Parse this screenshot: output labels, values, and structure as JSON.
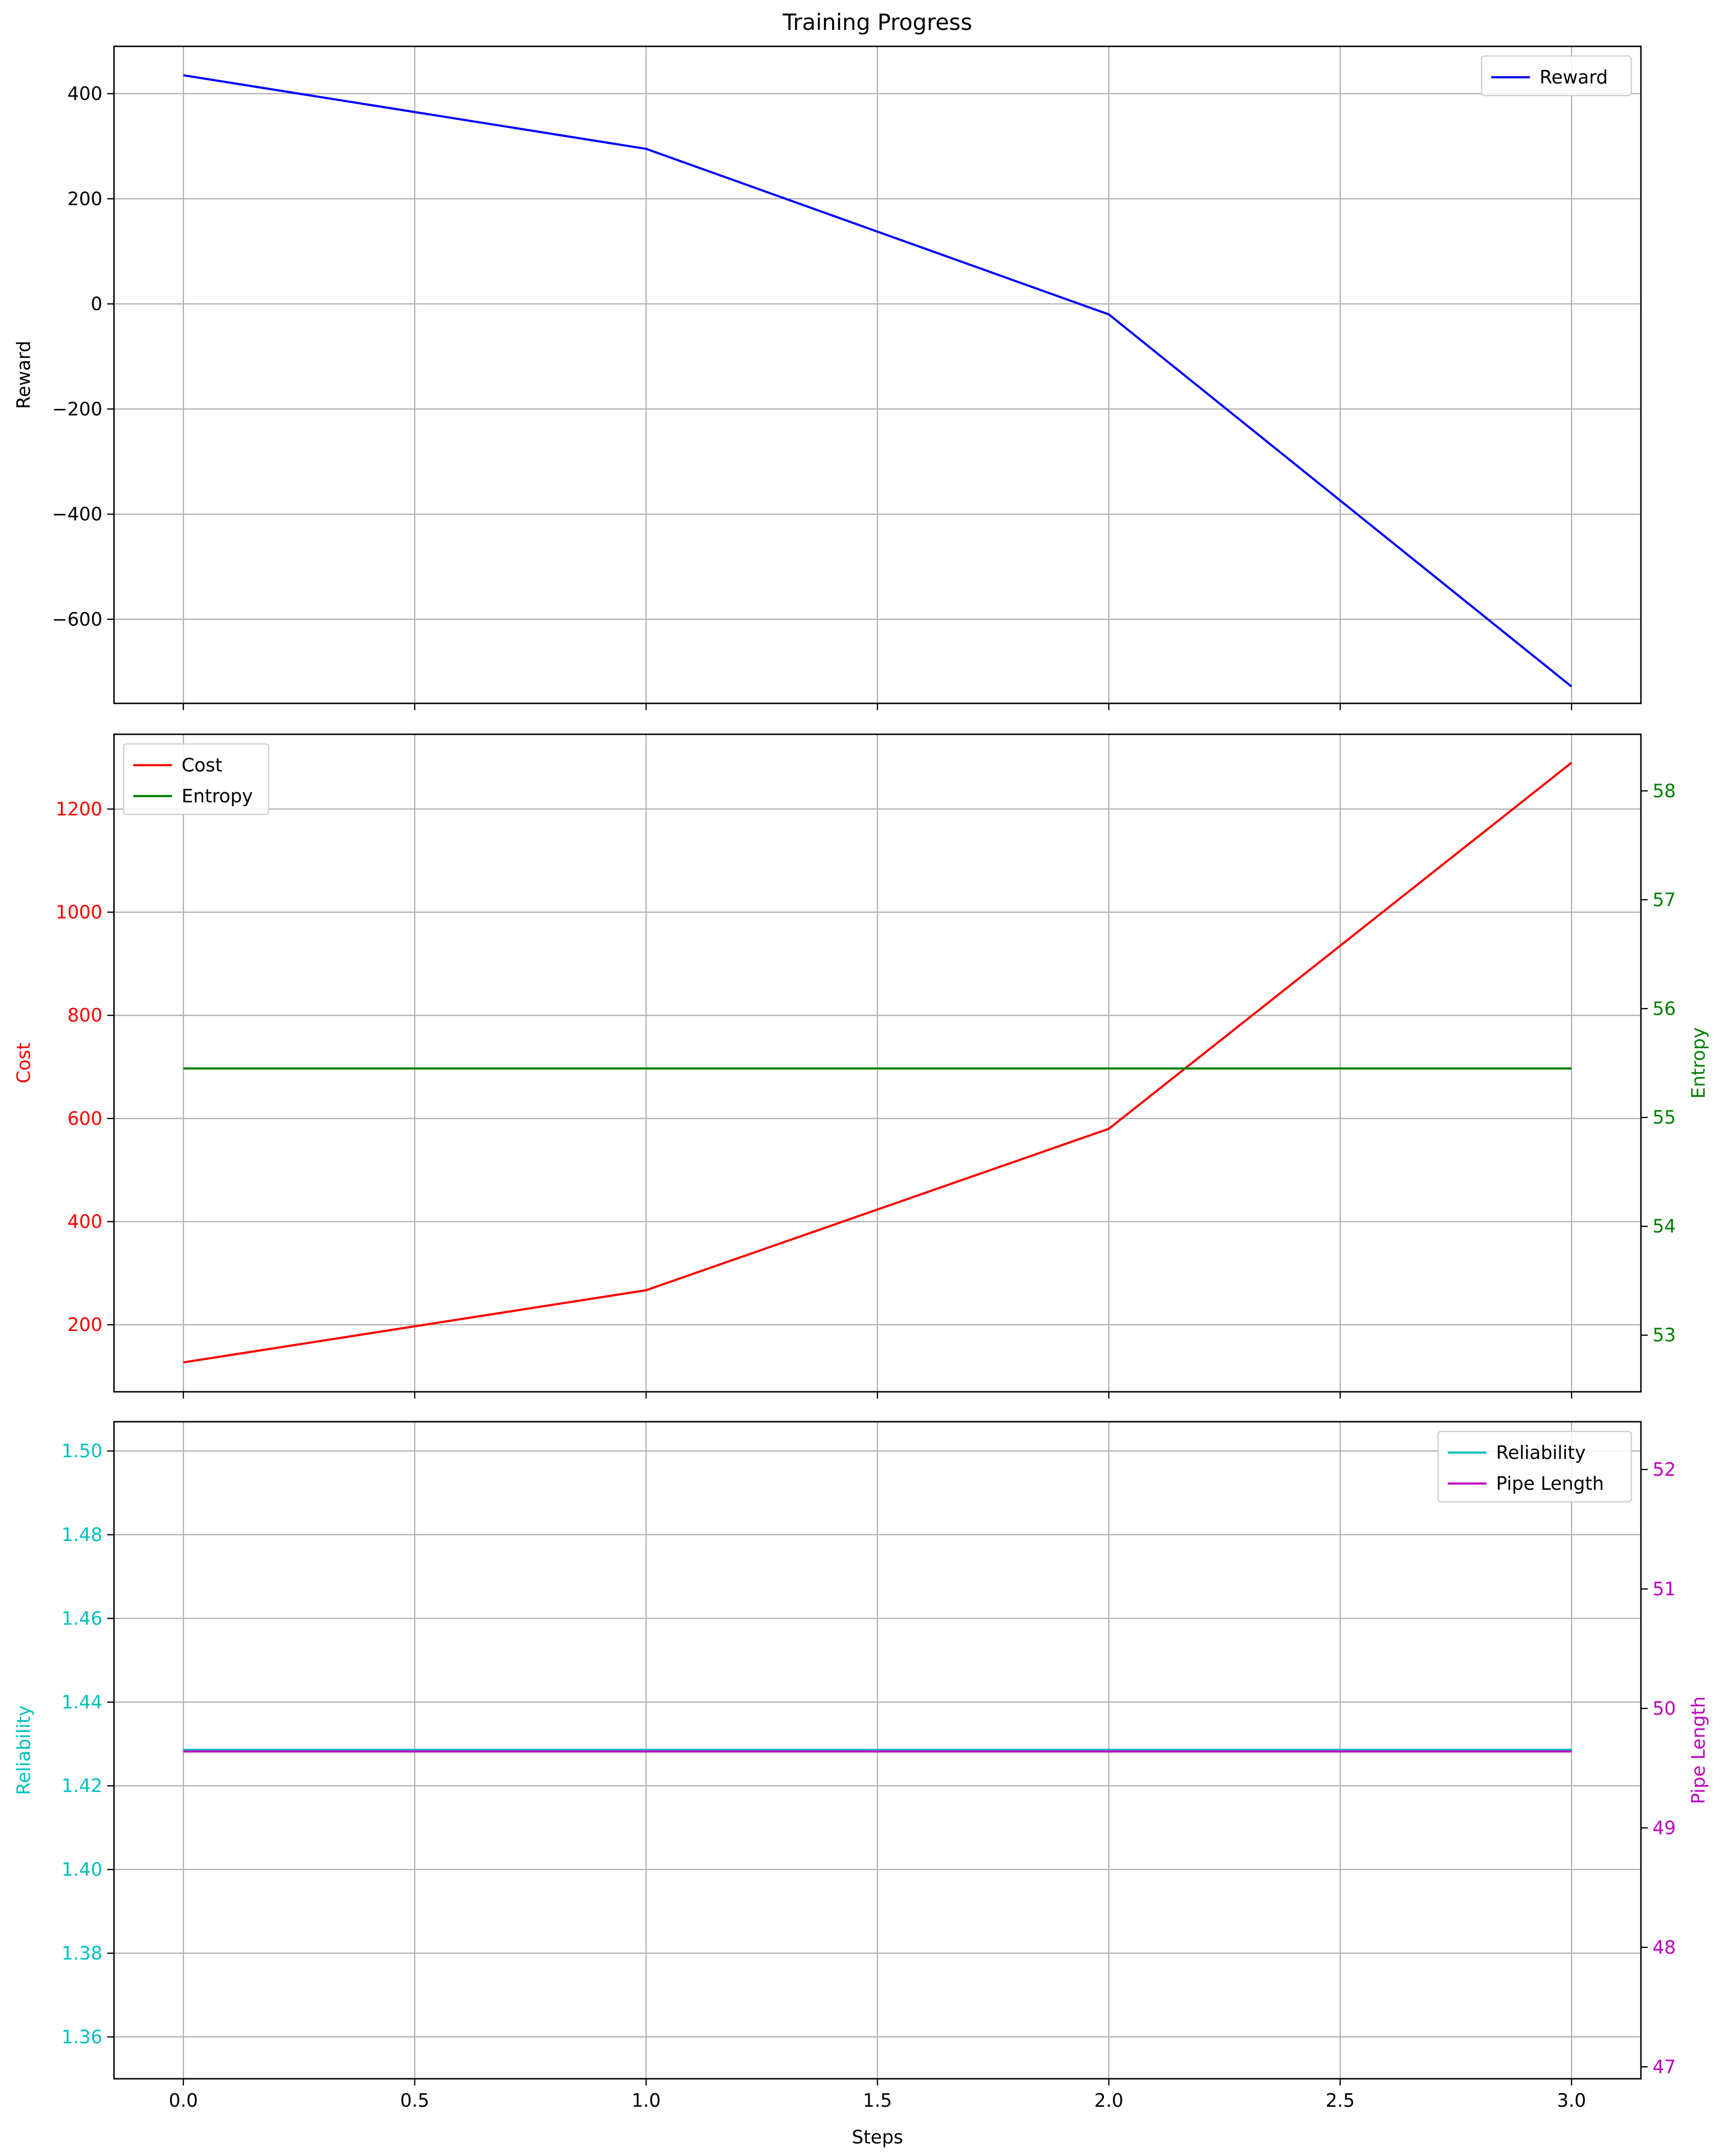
{
  "figure": {
    "title": "Training Progress",
    "xlabel": "Steps",
    "x_ticks": [
      "0.0",
      "0.5",
      "1.0",
      "1.5",
      "2.0",
      "2.5",
      "3.0"
    ]
  },
  "chart_data": [
    {
      "type": "line",
      "title": "Training Progress",
      "x": [
        0,
        1,
        2,
        3
      ],
      "xlim": [
        -0.15,
        3.15
      ],
      "grid": true,
      "left_axis": {
        "label": "Reward",
        "color": "#000000",
        "ylim": [
          -760,
          490
        ],
        "ticks": [
          400,
          200,
          0,
          -200,
          -400,
          -600
        ],
        "tick_labels": [
          "400",
          "200",
          "0",
          "−200",
          "−400",
          "−600"
        ]
      },
      "series": [
        {
          "name": "Reward",
          "axis": "left",
          "color": "#0000ff",
          "values": [
            435,
            295,
            -20,
            -728
          ]
        }
      ],
      "legend": {
        "placement": "upper right",
        "entries": [
          "Reward"
        ]
      }
    },
    {
      "type": "line",
      "x": [
        0,
        1,
        2,
        3
      ],
      "xlim": [
        -0.15,
        3.15
      ],
      "grid": true,
      "left_axis": {
        "label": "Cost",
        "color": "#ff0000",
        "ylim": [
          70,
          1345
        ],
        "ticks": [
          200,
          400,
          600,
          800,
          1000,
          1200
        ],
        "tick_labels": [
          "200",
          "400",
          "600",
          "800",
          "1000",
          "1200"
        ]
      },
      "right_axis": {
        "label": "Entropy",
        "color": "#008000",
        "ylim": [
          52.48,
          58.52
        ],
        "ticks": [
          53,
          54,
          55,
          56,
          57,
          58
        ],
        "tick_labels": [
          "53",
          "54",
          "55",
          "56",
          "57",
          "58"
        ]
      },
      "series": [
        {
          "name": "Cost",
          "axis": "left",
          "color": "#ff0000",
          "values": [
            127,
            267,
            580,
            1290
          ]
        },
        {
          "name": "Entropy",
          "axis": "right",
          "color": "#008000",
          "values": [
            55.45,
            55.45,
            55.45,
            55.45
          ]
        }
      ],
      "legend": {
        "placement": "upper left",
        "entries": [
          "Cost",
          "Entropy"
        ]
      }
    },
    {
      "type": "line",
      "x": [
        0,
        1,
        2,
        3
      ],
      "xlim": [
        -0.15,
        3.15
      ],
      "grid": true,
      "left_axis": {
        "label": "Reliability",
        "color": "#00bfbf",
        "ylim": [
          1.35,
          1.507
        ],
        "ticks": [
          1.36,
          1.38,
          1.4,
          1.42,
          1.44,
          1.46,
          1.48,
          1.5
        ],
        "tick_labels": [
          "1.36",
          "1.38",
          "1.40",
          "1.42",
          "1.44",
          "1.46",
          "1.48",
          "1.50"
        ]
      },
      "right_axis": {
        "label": "Pipe Length",
        "color": "#bf00bf",
        "ylim": [
          46.9,
          52.4
        ],
        "ticks": [
          47,
          48,
          49,
          50,
          51,
          52
        ],
        "tick_labels": [
          "47",
          "48",
          "49",
          "50",
          "51",
          "52"
        ]
      },
      "series": [
        {
          "name": "Reliability",
          "axis": "left",
          "color": "#00bfbf",
          "values": [
            1.4286,
            1.4286,
            1.4286,
            1.4286
          ]
        },
        {
          "name": "Pipe Length",
          "axis": "right",
          "color": "#bf00bf",
          "values": [
            49.64,
            49.64,
            49.64,
            49.64
          ]
        }
      ],
      "legend": {
        "placement": "upper right",
        "entries": [
          "Reliability",
          "Pipe Length"
        ]
      }
    }
  ]
}
